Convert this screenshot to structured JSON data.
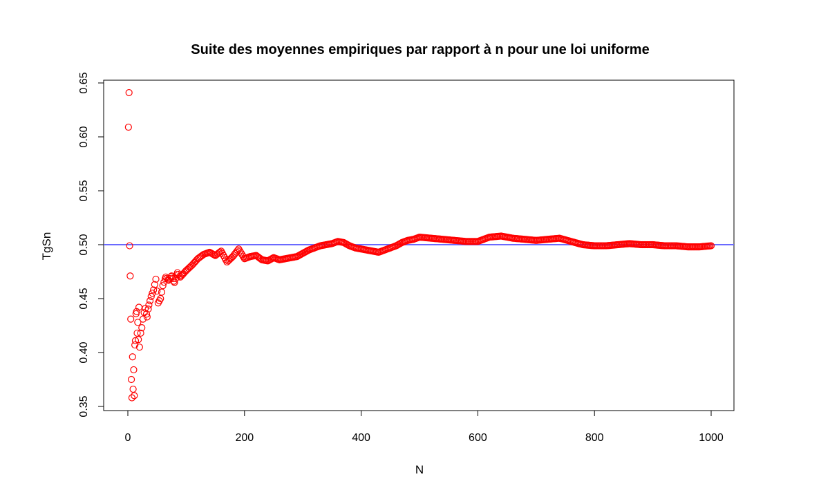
{
  "chart_data": {
    "type": "scatter",
    "title": "Suite des moyennes empiriques par rapport à n pour une loi uniforme",
    "xlabel": "N",
    "ylabel": "TgSn",
    "xlim": [
      0,
      1000
    ],
    "ylim": [
      0.35,
      0.65
    ],
    "x_ticks": [
      0,
      200,
      400,
      600,
      800,
      1000
    ],
    "x_tick_labels": [
      "0",
      "200",
      "400",
      "600",
      "800",
      "1000"
    ],
    "y_ticks": [
      0.35,
      0.4,
      0.45,
      0.5,
      0.55,
      0.6,
      0.65
    ],
    "y_tick_labels": [
      "0.35",
      "0.40",
      "0.45",
      "0.50",
      "0.55",
      "0.60",
      "0.65"
    ],
    "grid": false,
    "reference_line": {
      "orientation": "horizontal",
      "y": 0.5,
      "color": "#6a6aff"
    },
    "series": [
      {
        "marker": "open-circle",
        "color": "#ff0000",
        "x": [
          1,
          2,
          3,
          4,
          5,
          6,
          7,
          8,
          9,
          10,
          11,
          12,
          13,
          14,
          15,
          16,
          17,
          18,
          19,
          20,
          22,
          24,
          26,
          28,
          30,
          33,
          36,
          40,
          44,
          48,
          52,
          56,
          60,
          65,
          70,
          75,
          80,
          85,
          90,
          95,
          100,
          110,
          120,
          130,
          140,
          150,
          160,
          170,
          180,
          190,
          200,
          210,
          220,
          230,
          240,
          250,
          260,
          270,
          280,
          290,
          300,
          310,
          320,
          330,
          340,
          350,
          360,
          370,
          380,
          390,
          400,
          410,
          420,
          430,
          440,
          450,
          460,
          470,
          480,
          490,
          500,
          520,
          540,
          560,
          580,
          600,
          620,
          640,
          660,
          680,
          700,
          720,
          740,
          760,
          780,
          800,
          820,
          840,
          860,
          880,
          900,
          920,
          940,
          960,
          980,
          1000
        ],
        "y": [
          0.609,
          0.641,
          0.499,
          0.471,
          0.431,
          0.375,
          0.358,
          0.396,
          0.366,
          0.384,
          0.36,
          0.407,
          0.411,
          0.436,
          0.438,
          0.418,
          0.428,
          0.412,
          0.442,
          0.405,
          0.418,
          0.423,
          0.431,
          0.437,
          0.441,
          0.433,
          0.444,
          0.452,
          0.458,
          0.468,
          0.446,
          0.45,
          0.462,
          0.47,
          0.467,
          0.471,
          0.465,
          0.474,
          0.47,
          0.473,
          0.476,
          0.481,
          0.487,
          0.491,
          0.493,
          0.49,
          0.494,
          0.484,
          0.489,
          0.496,
          0.487,
          0.489,
          0.49,
          0.486,
          0.485,
          0.488,
          0.486,
          0.487,
          0.488,
          0.489,
          0.492,
          0.495,
          0.497,
          0.499,
          0.5,
          0.501,
          0.503,
          0.502,
          0.499,
          0.497,
          0.496,
          0.495,
          0.494,
          0.493,
          0.495,
          0.497,
          0.499,
          0.502,
          0.504,
          0.505,
          0.507,
          0.506,
          0.505,
          0.504,
          0.503,
          0.503,
          0.507,
          0.508,
          0.506,
          0.505,
          0.504,
          0.505,
          0.506,
          0.503,
          0.5,
          0.499,
          0.499,
          0.5,
          0.501,
          0.5,
          0.5,
          0.499,
          0.499,
          0.498,
          0.498,
          0.499
        ]
      }
    ]
  }
}
